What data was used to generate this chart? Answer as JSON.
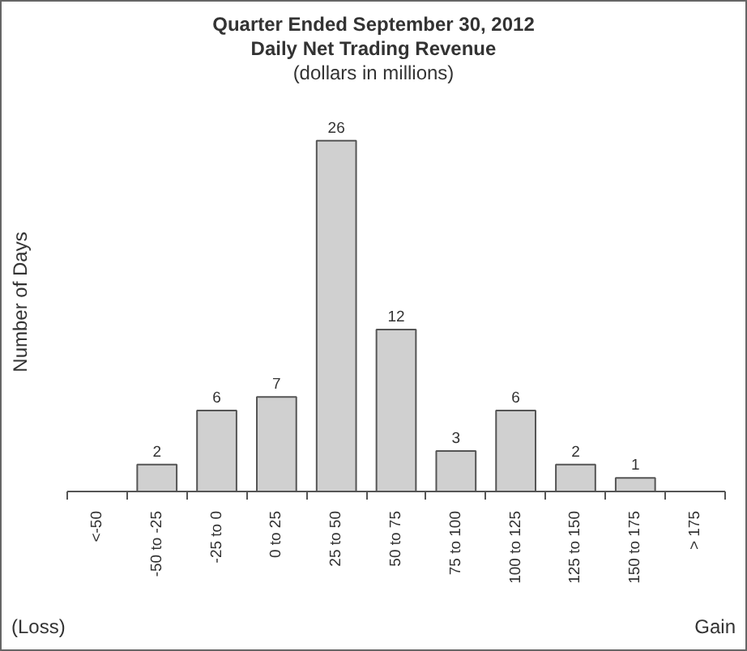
{
  "chart_data": {
    "type": "bar",
    "title": "Quarter Ended September 30, 2012\nDaily Net Trading Revenue",
    "subtitle": "(dollars in millions)",
    "ylabel": "Number of Days",
    "categories": [
      "<-50",
      "-50 to -25",
      "-25 to 0",
      "0 to 25",
      "25 to 50",
      "50 to 75",
      "75 to 100",
      "100 to 125",
      "125 to 150",
      "150 to 175",
      "> 175"
    ],
    "values": [
      0,
      2,
      6,
      7,
      26,
      12,
      3,
      6,
      2,
      1,
      0
    ],
    "value_labels": [
      null,
      "2",
      "6",
      "7",
      "26",
      "12",
      "3",
      "6",
      "2",
      "1",
      null
    ],
    "color": "#d0d0d0",
    "tick_labels": "x",
    "annotations": [
      "(Loss)",
      "Gain"
    ]
  }
}
